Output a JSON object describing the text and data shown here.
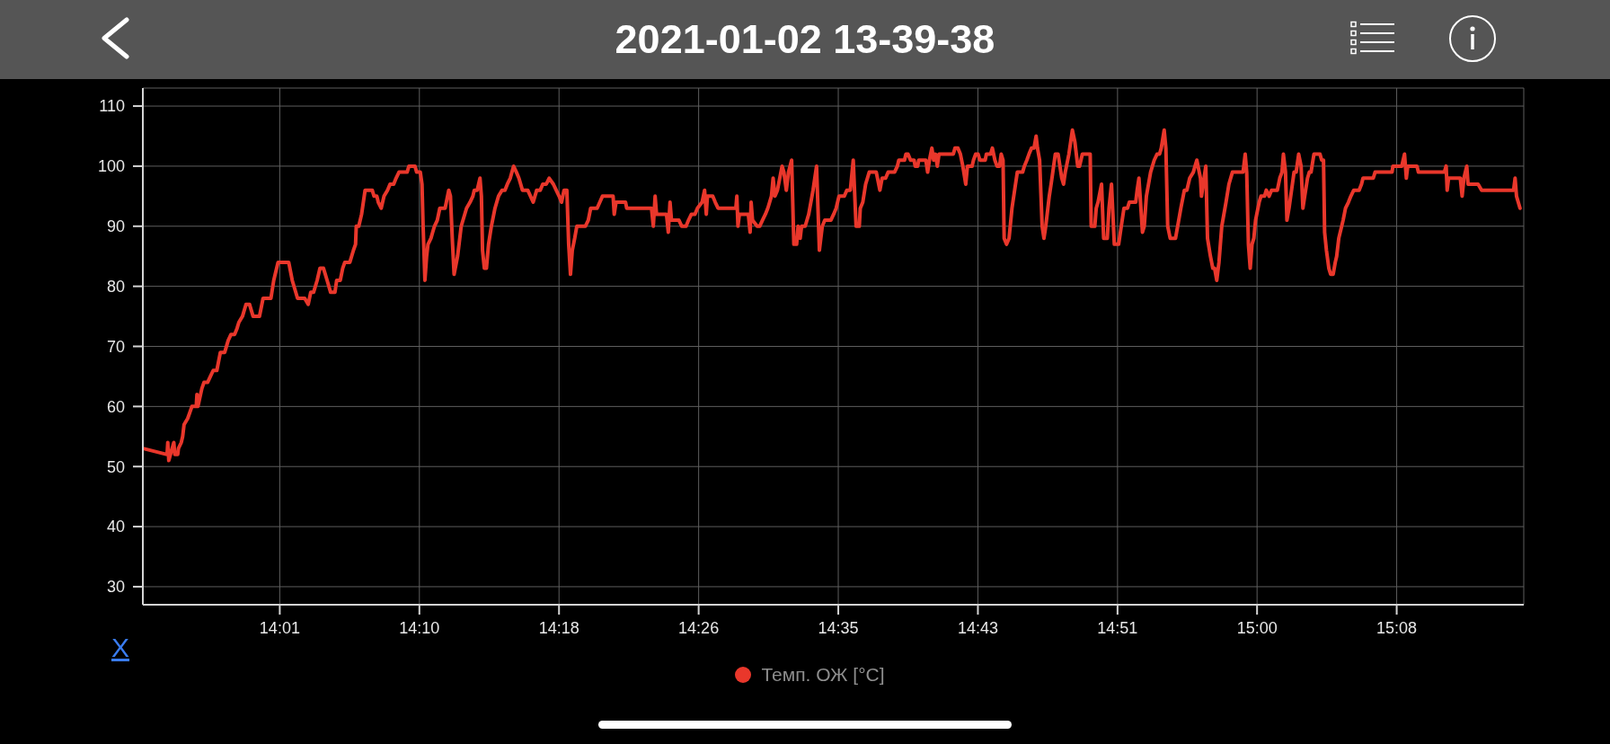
{
  "chart_data": {
    "type": "line",
    "title": "2021-01-02 13-39-38",
    "xlabel": "X",
    "x": [
      13.8864,
      13.9101,
      13.9108,
      13.9118,
      13.9168,
      13.9178,
      13.9207,
      13.9214,
      13.9242,
      13.9256,
      13.927,
      13.9306,
      13.9327,
      13.9348,
      13.9391,
      13.9398,
      13.9408,
      13.9447,
      13.9468,
      13.9504,
      13.9532,
      13.956,
      13.9596,
      13.9631,
      13.9674,
      13.9709,
      13.9737,
      13.9773,
      13.9797,
      13.9815,
      13.9851,
      13.9886,
      13.9921,
      13.9957,
      14.002,
      14.0056,
      14.0134,
      14.0162,
      14.0205,
      14.0311,
      14.0346,
      14.0399,
      14.047,
      14.0505,
      14.053,
      14.0558,
      14.0594,
      14.0622,
      14.0657,
      14.0693,
      14.0728,
      14.0771,
      14.0788,
      14.0824,
      14.0848,
      14.0869,
      14.0919,
      14.0955,
      14.0976,
      14.0983,
      14.1008,
      14.1036,
      14.1071,
      14.1142,
      14.116,
      14.1188,
      14.1202,
      14.1231,
      14.1259,
      14.1294,
      14.1319,
      14.1355,
      14.1379,
      14.1408,
      14.1489,
      14.1507,
      14.1567,
      14.1584,
      14.162,
      14.1637,
      14.1648,
      14.1666,
      14.1683,
      14.1697,
      14.1726,
      14.1743,
      14.1761,
      14.1789,
      14.1814,
      14.1867,
      14.1903,
      14.192,
      14.1938,
      14.1956,
      14.1991,
      14.2027,
      14.208,
      14.2115,
      14.2143,
      14.2157,
      14.2186,
      14.2214,
      14.2228,
      14.2239,
      14.2257,
      14.2278,
      14.2299,
      14.2327,
      14.2363,
      14.2398,
      14.2433,
      14.2462,
      14.2486,
      14.2515,
      14.2548,
      14.2576,
      14.2601,
      14.2636,
      14.2689,
      14.2743,
      14.2778,
      14.2813,
      14.2838,
      14.2873,
      14.2902,
      14.2944,
      14.2972,
      14.3001,
      14.3025,
      14.305,
      14.3078,
      14.3096,
      14.3114,
      14.3132,
      14.3156,
      14.3177,
      14.3262,
      14.3291,
      14.3315,
      14.3379,
      14.3432,
      14.3538,
      14.3549,
      14.3567,
      14.3662,
      14.3673,
      14.392,
      14.3938,
      14.3956,
      14.397,
      14.4069,
      14.4087,
      14.4104,
      14.4119,
      14.4193,
      14.4221,
      14.4264,
      14.4288,
      14.4317,
      14.4352,
      14.4377,
      14.4423,
      14.4448,
      14.4465,
      14.4476,
      14.4529,
      14.4554,
      14.4582,
      14.4759,
      14.4769,
      14.478,
      14.4794,
      14.4883,
      14.4901,
      14.4911,
      14.4925,
      14.4971,
      14.4996,
      14.5024,
      14.5053,
      14.5077,
      14.5113,
      14.513,
      14.5148,
      14.5173,
      14.5219,
      14.5237,
      14.5261,
      14.5283,
      14.5314,
      14.5336,
      14.5364,
      14.5378,
      14.5399,
      14.5413,
      14.5449,
      14.5484,
      14.5527,
      14.5562,
      14.559,
      14.5619,
      14.5644,
      14.5704,
      14.5732,
      14.5757,
      14.5785,
      14.5838,
      14.5863,
      14.5898,
      14.5927,
      14.5955,
      14.5987,
      14.5997,
      14.6022,
      14.605,
      14.6086,
      14.6156,
      14.6192,
      14.6214,
      14.6249,
      14.6274,
      14.6338,
      14.6366,
      14.638,
      14.6437,
      14.6451,
      14.6472,
      14.6497,
      14.6532,
      14.6543,
      14.6568,
      14.6578,
      14.6649,
      14.6667,
      14.6685,
      14.6709,
      14.6727,
      14.6745,
      14.6763,
      14.678,
      14.6922,
      14.6939,
      14.6968,
      14.6993,
      14.7017,
      14.7046,
      14.7063,
      14.7109,
      14.7123,
      14.7145,
      14.7169,
      14.7187,
      14.724,
      14.7251,
      14.7293,
      14.7311,
      14.7336,
      14.7357,
      14.7382,
      14.7399,
      14.7417,
      14.7428,
      14.7452,
      14.7477,
      14.7506,
      14.7541,
      14.7559,
      14.7612,
      14.7629,
      14.7654,
      14.7675,
      14.77,
      14.7725,
      14.7746,
      14.776,
      14.7781,
      14.7806,
      14.7824,
      14.7842,
      14.7877,
      14.7895,
      14.7912,
      14.7937,
      14.7965,
      14.8001,
      14.8019,
      14.8036,
      14.8072,
      14.8107,
      14.8132,
      14.816,
      14.8178,
      14.8206,
      14.8284,
      14.8294,
      14.833,
      14.8344,
      14.8362,
      14.8397,
      14.8418,
      14.8454,
      14.8471,
      14.8496,
      14.8524,
      14.8567,
      14.8602,
      14.862,
      14.8655,
      14.8673,
      14.8737,
      14.8751,
      14.8769,
      14.8804,
      14.8822,
      14.8843,
      14.8885,
      14.8921,
      14.8949,
      14.8974,
      14.8991,
      14.902,
      14.9037,
      14.9055,
      14.908,
      14.9133,
      14.9154,
      14.9186,
      14.9221,
      14.9246,
      14.9274,
      14.931,
      14.9327,
      14.9345,
      14.9381,
      14.9391,
      14.9434,
      14.9451,
      14.948,
      14.9504,
      14.9522,
      14.9543,
      14.9565,
      14.9593,
      14.9635,
      14.9664,
      14.9699,
      14.9805,
      14.9826,
      14.9841,
      14.9858,
      14.9876,
      14.9894,
      14.9912,
      14.9929,
      14.9965,
      14.9983,
      15.0018,
      15.0036,
      15.0064,
      15.0088,
      15.0146,
      15.017,
      15.0192,
      15.0206,
      15.0227,
      15.0241,
      15.0262,
      15.0287,
      15.0312,
      15.0333,
      15.0358,
      15.0382,
      15.04,
      15.0418,
      15.0446,
      15.0464,
      15.0481,
      15.051,
      15.057,
      15.0587,
      15.0605,
      15.0616,
      15.0634,
      15.0658,
      15.0676,
      15.0701,
      15.0722,
      15.0736,
      15.0757,
      15.08,
      15.0824,
      15.0853,
      15.0877,
      15.0906,
      15.0959,
      15.0983,
      15.0998,
      15.11,
      15.1118,
      15.1287,
      15.1295,
      15.1383,
      15.1411,
      15.1429,
      15.1443,
      15.1535,
      15.1549,
      15.1807,
      15.1825,
      15.1835,
      15.1849,
      15.1966,
      15.1984,
      15.2002,
      15.203,
      15.2043,
      15.2143,
      15.2178,
      15.2496,
      15.2511,
      15.2525,
      15.256
    ],
    "series": [
      {
        "name": "Темп. ОЖ [°C]",
        "color": "#e9372b",
        "values": [
          53,
          52,
          54,
          51,
          54,
          52,
          52,
          53,
          54,
          55,
          57,
          58,
          59,
          60,
          60,
          62,
          60,
          63,
          64,
          64,
          65,
          66,
          66,
          69,
          69,
          71,
          72,
          72,
          73,
          74,
          75,
          77,
          77,
          75,
          75,
          78,
          78,
          81,
          84,
          84,
          81,
          78,
          78,
          77,
          79,
          79,
          81,
          83,
          83,
          81,
          79,
          79,
          81,
          81,
          83,
          84,
          84,
          86,
          87,
          90,
          90,
          92,
          96,
          96,
          95,
          95,
          94,
          93,
          95,
          96,
          97,
          97,
          98,
          99,
          99,
          100,
          100,
          99,
          99,
          97,
          90,
          81,
          85,
          87,
          88,
          89,
          90,
          91,
          93,
          93,
          96,
          95,
          88,
          82,
          85,
          90,
          93,
          94,
          95,
          96,
          96,
          98,
          95,
          86,
          83,
          83,
          87,
          90,
          93,
          95,
          96,
          96,
          97,
          98,
          100,
          99,
          98,
          96,
          96,
          94,
          96,
          96,
          97,
          97,
          98,
          97,
          96,
          95,
          94,
          96,
          96,
          87,
          82,
          86,
          88,
          90,
          90,
          91,
          93,
          93,
          95,
          95,
          92,
          94,
          94,
          93,
          93,
          90,
          95,
          92,
          92,
          89,
          94,
          91,
          91,
          90,
          90,
          91,
          92,
          92,
          93,
          94,
          96,
          92,
          95,
          95,
          94,
          93,
          93,
          95,
          90,
          92,
          92,
          89,
          94,
          91,
          90,
          90,
          91,
          92,
          93,
          95,
          98,
          95,
          96,
          100,
          99,
          96,
          99,
          101,
          87,
          87,
          90,
          88,
          90,
          90,
          92,
          96,
          100,
          86,
          90,
          91,
          91,
          92,
          93,
          95,
          95,
          96,
          96,
          101,
          90,
          90,
          93,
          94,
          97,
          99,
          99,
          96,
          98,
          98,
          99,
          99,
          100,
          101,
          101,
          102,
          102,
          101,
          101,
          100,
          100,
          101,
          101,
          99,
          101,
          103,
          101,
          102,
          100,
          102,
          102,
          103,
          103,
          102,
          100,
          97,
          100,
          100,
          101,
          102,
          102,
          101,
          101,
          102,
          102,
          103,
          101,
          100,
          100,
          102,
          101,
          88,
          87,
          88,
          93,
          97,
          99,
          99,
          100,
          101,
          102,
          103,
          103,
          105,
          103,
          101,
          90,
          88,
          90,
          95,
          97,
          99,
          102,
          102,
          98,
          97,
          99,
          102,
          106,
          104,
          100,
          100,
          102,
          102,
          90,
          90,
          93,
          94,
          97,
          88,
          88,
          93,
          97,
          87,
          87,
          91,
          93,
          93,
          94,
          94,
          96,
          98,
          89,
          90,
          95,
          99,
          101,
          102,
          102,
          103,
          106,
          103,
          90,
          88,
          88,
          90,
          93,
          96,
          96,
          98,
          99,
          100,
          101,
          98,
          95,
          100,
          88,
          85,
          83,
          83,
          81,
          84,
          90,
          94,
          97,
          99,
          99,
          102,
          99,
          87,
          83,
          87,
          88,
          91,
          94,
          95,
          95,
          96,
          95,
          96,
          96,
          98,
          99,
          102,
          99,
          91,
          93,
          96,
          99,
          99,
          102,
          100,
          93,
          95,
          98,
          99,
          99,
          102,
          102,
          101,
          101,
          89,
          86,
          83,
          82,
          82,
          84,
          85,
          88,
          91,
          93,
          94,
          95,
          96,
          96,
          97,
          98,
          98,
          99,
          99,
          100,
          100,
          102,
          98,
          100,
          100,
          99,
          99,
          100,
          96,
          98,
          98,
          95,
          98,
          100,
          97,
          97,
          96,
          96,
          98,
          95,
          93
        ]
      }
    ],
    "xlim": [
      13.886,
      15.2597
    ],
    "xticks": [
      {
        "value": 14.0222,
        "label": "14:01"
      },
      {
        "value": 14.1611,
        "label": "14:10"
      },
      {
        "value": 14.3,
        "label": "14:18"
      },
      {
        "value": 14.4389,
        "label": "14:26"
      },
      {
        "value": 14.5778,
        "label": "14:35"
      },
      {
        "value": 14.7167,
        "label": "14:43"
      },
      {
        "value": 14.8556,
        "label": "14:51"
      },
      {
        "value": 14.9944,
        "label": "15:00"
      },
      {
        "value": 15.1333,
        "label": "15:08"
      }
    ],
    "ylim": [
      27,
      113
    ],
    "yticks": [
      30,
      40,
      50,
      60,
      70,
      80,
      90,
      100,
      110
    ],
    "grid": true,
    "legend": "bottom"
  }
}
